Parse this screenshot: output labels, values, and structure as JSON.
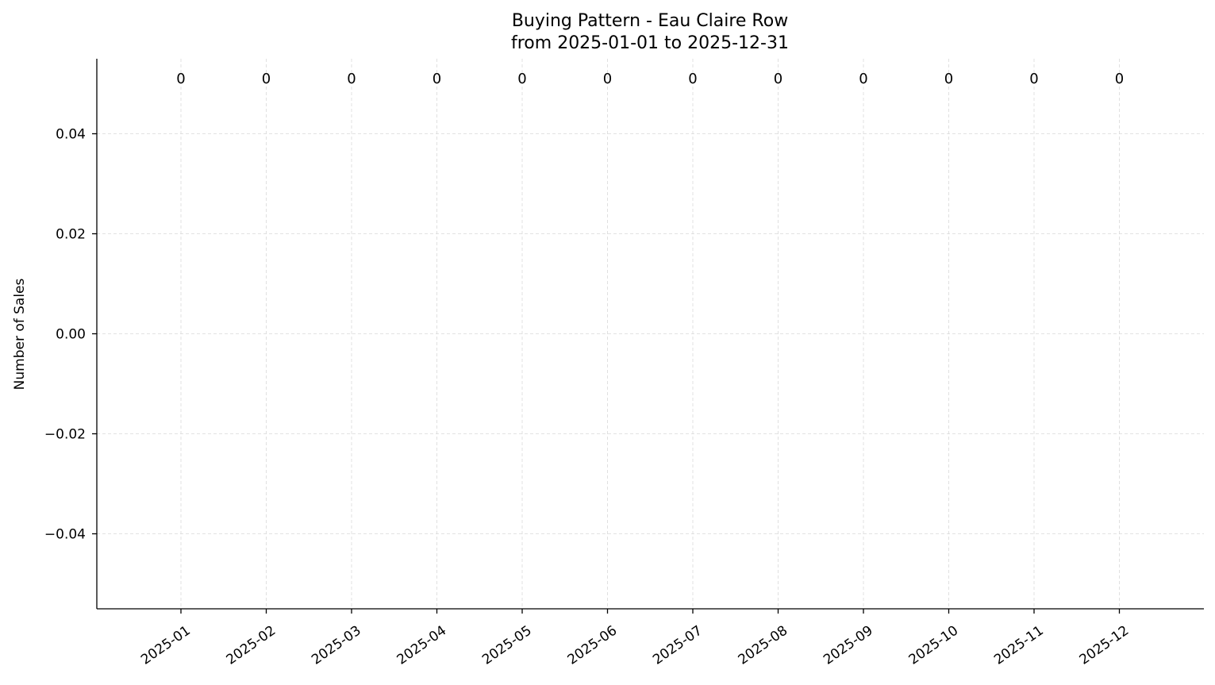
{
  "chart_data": {
    "type": "bar",
    "title": "Buying Pattern - Eau Claire Row",
    "subtitle": "from 2025-01-01 to 2025-12-31",
    "xlabel": "",
    "ylabel": "Number of Sales",
    "categories": [
      "2025-01",
      "2025-02",
      "2025-03",
      "2025-04",
      "2025-05",
      "2025-06",
      "2025-07",
      "2025-08",
      "2025-09",
      "2025-10",
      "2025-11",
      "2025-12"
    ],
    "values": [
      0,
      0,
      0,
      0,
      0,
      0,
      0,
      0,
      0,
      0,
      0,
      0
    ],
    "ylim": [
      -0.055,
      0.055
    ],
    "yticks": [
      0.04,
      0.02,
      0.0,
      -0.02,
      -0.04
    ],
    "ytick_labels": [
      "0.04",
      "0.02",
      "0.00",
      "−0.02",
      "−0.04"
    ],
    "grid": true,
    "legend": "none"
  }
}
